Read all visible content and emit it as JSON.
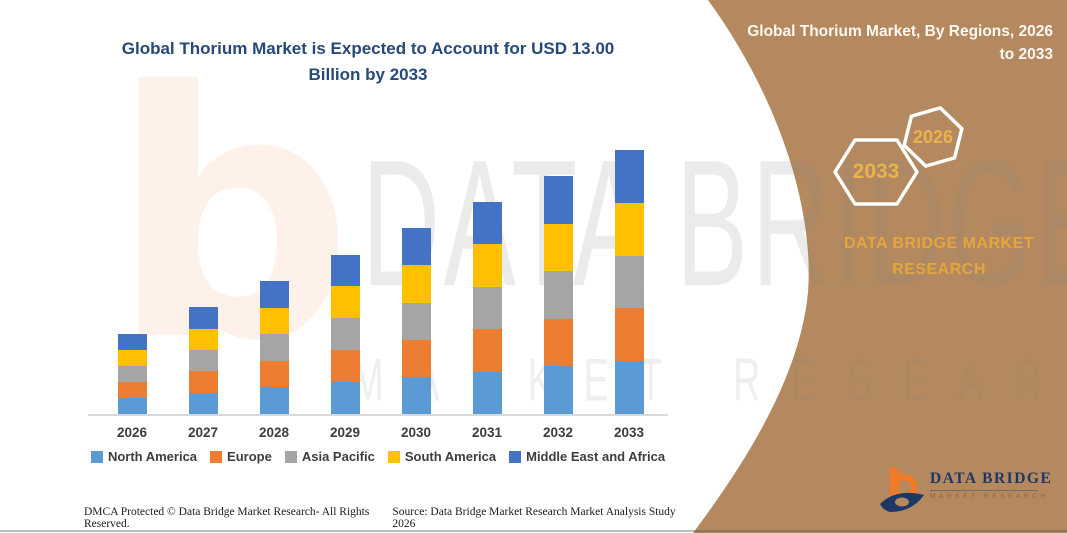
{
  "header": {
    "chart_title": "Global Thorium Market is Expected to Account for USD 13.00 Billion by 2033",
    "panel_title": "Global Thorium Market, By Regions, 2026 to 2033"
  },
  "right_panel": {
    "hex_large_label": "2033",
    "hex_small_label": "2026",
    "brand_name": "DATA BRIDGE MARKET RESEARCH"
  },
  "watermark": {
    "line1": "DATA BRIDGE",
    "line2": "MARKET RESEARCH",
    "logo_glyph": "b"
  },
  "chart_data": {
    "type": "bar",
    "stacked": true,
    "title": "Global Thorium Market is Expected to Account for USD 13.00 Billion by 2033",
    "unit": "USD Billion",
    "categories": [
      "2026",
      "2027",
      "2028",
      "2029",
      "2030",
      "2031",
      "2032",
      "2033"
    ],
    "series": [
      {
        "name": "North America",
        "color": "#5b9bd5",
        "values": [
          0.79,
          1.05,
          1.31,
          1.57,
          1.83,
          2.09,
          2.34,
          2.6
        ]
      },
      {
        "name": "Europe",
        "color": "#ed7d31",
        "values": [
          0.79,
          1.05,
          1.31,
          1.57,
          1.83,
          2.09,
          2.34,
          2.6
        ]
      },
      {
        "name": "Asia Pacific",
        "color": "#a5a5a5",
        "values": [
          0.79,
          1.05,
          1.31,
          1.57,
          1.83,
          2.09,
          2.34,
          2.6
        ]
      },
      {
        "name": "South America",
        "color": "#ffc000",
        "values": [
          0.79,
          1.05,
          1.31,
          1.57,
          1.83,
          2.09,
          2.34,
          2.6
        ]
      },
      {
        "name": "Middle East and Africa",
        "color": "#4472c4",
        "values": [
          0.79,
          1.05,
          1.31,
          1.57,
          1.83,
          2.09,
          2.34,
          2.6
        ]
      }
    ],
    "totals": [
      3.95,
      5.25,
      6.55,
      7.85,
      9.15,
      10.45,
      11.7,
      13.0
    ],
    "xlabel": "",
    "ylabel": "",
    "ylim": [
      0,
      13
    ],
    "gridlines": false,
    "axis_ticks_shown": "x-only",
    "legend_position": "bottom"
  },
  "footer": {
    "dmca": "DMCA Protected © Data Bridge Market Research-  All Rights Reserved.",
    "source": "Source: Data Bridge Market Research  Market Analysis Study 2026"
  },
  "logo": {
    "name": "DATA BRIDGE",
    "subtitle": "MARKET RESEARCH"
  },
  "colors": {
    "panel_brown": "#b5895f",
    "title_navy": "#26497a",
    "gold": "#eab24c",
    "axis_gray": "#d9d9d9",
    "legend_text": "#3d3d3d"
  }
}
